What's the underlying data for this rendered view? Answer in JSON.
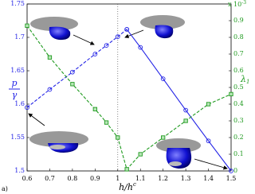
{
  "chart_data": {
    "type": "line",
    "xlabel_main": "h/h",
    "xlabel_sup": "c",
    "ylabel_num": "p",
    "ylabel_den": "γ",
    "y2label_main": "λ",
    "y2label_sub": "1",
    "y2_multiplier": "x 10",
    "y2_multiplier_exp": "-3",
    "panel_label": "a)",
    "x": [
      0.6,
      0.7,
      0.8,
      0.9,
      0.95,
      1.0,
      1.04,
      1.1,
      1.2,
      1.3,
      1.4,
      1.5
    ],
    "xlim": [
      0.6,
      1.5
    ],
    "xticks": [
      0.6,
      0.7,
      0.8,
      0.9,
      1,
      1.1,
      1.2,
      1.3,
      1.4,
      1.5
    ],
    "ylim": [
      1.5,
      1.75
    ],
    "yticks": [
      1.5,
      1.55,
      1.6,
      1.65,
      1.7,
      1.75
    ],
    "y2lim": [
      0,
      1.0
    ],
    "y2ticks": [
      0,
      0.1,
      0.2,
      0.3,
      0.4,
      0.5,
      0.6,
      0.7,
      0.8,
      0.9
    ],
    "vline": 1.0,
    "series": [
      {
        "color": "#2323e6",
        "dash": true,
        "marker": "circle",
        "values": [
          1.595,
          1.622,
          1.648,
          1.675,
          1.688,
          1.701,
          1.712,
          null,
          null,
          null,
          null,
          null
        ]
      },
      {
        "color": "#2323e6",
        "dash": false,
        "marker": "circle",
        "values": [
          null,
          null,
          null,
          null,
          null,
          null,
          1.712,
          1.685,
          1.638,
          1.591,
          1.545,
          1.5
        ]
      },
      {
        "color": "#1f9a1f",
        "dash": true,
        "marker": "square",
        "axis": "y2",
        "values": [
          0.87,
          0.68,
          0.52,
          0.37,
          0.29,
          0.2,
          0.01,
          0.1,
          0.2,
          0.3,
          0.4,
          0.46
        ]
      }
    ]
  }
}
